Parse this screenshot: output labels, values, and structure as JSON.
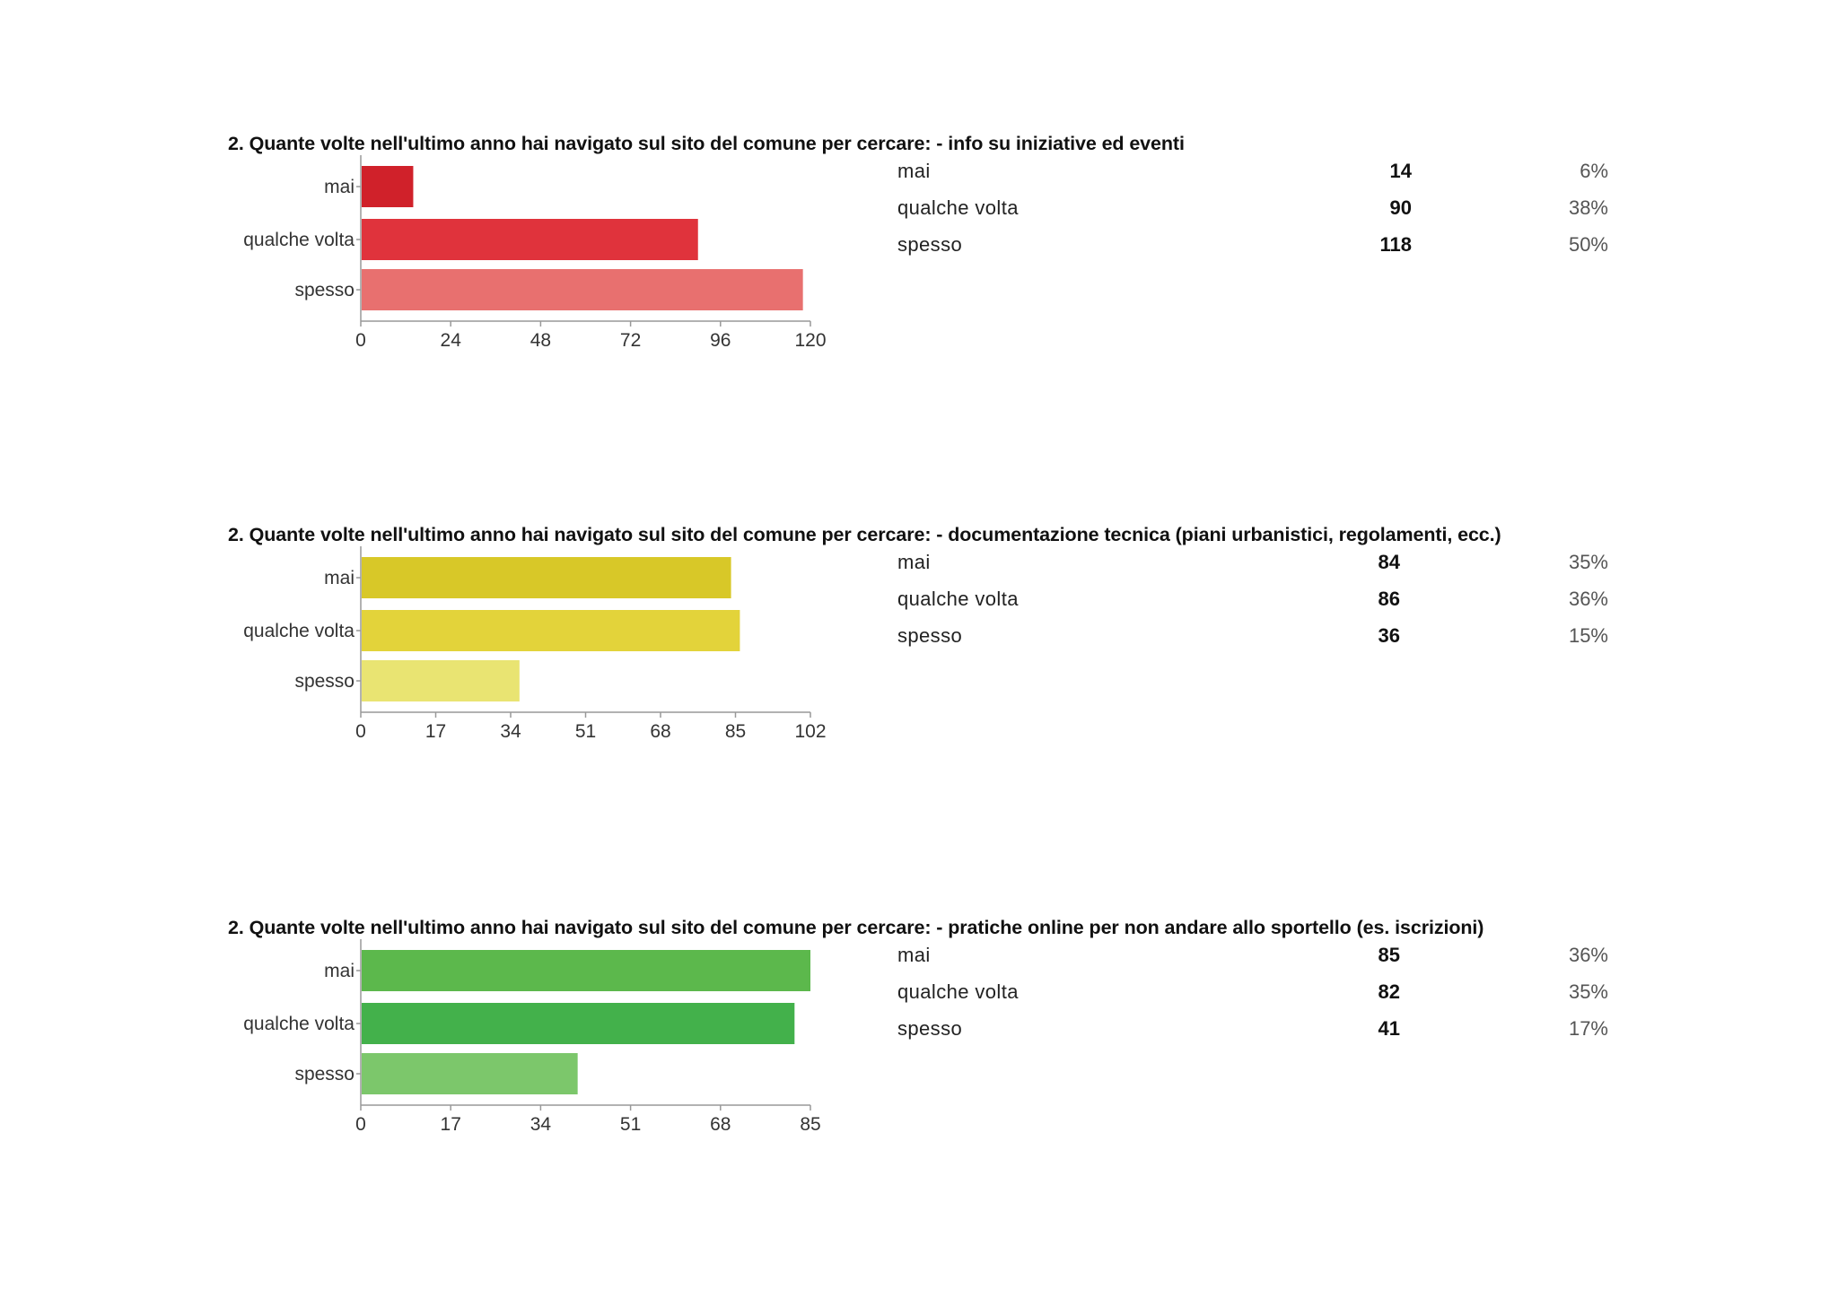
{
  "colors": {
    "q1": [
      "#d0212a",
      "#e0333c",
      "#e8706f"
    ],
    "q2": [
      "#d8c828",
      "#e3d33a",
      "#e9e472"
    ],
    "q3": [
      "#5cb84c",
      "#43b14b",
      "#7cc76b"
    ],
    "axis": "#999999"
  },
  "questions": [
    {
      "title": "2. Quante volte nell'ultimo anno hai navigato sul sito del comune per cercare: - info su iniziative ed eventi",
      "rows": [
        {
          "label": "mai",
          "count": "14",
          "pct": "6%"
        },
        {
          "label": "qualche volta",
          "count": "90",
          "pct": "38%"
        },
        {
          "label": "spesso",
          "count": "118",
          "pct": "50%"
        }
      ]
    },
    {
      "title": "2. Quante volte nell'ultimo anno hai navigato sul sito del comune per cercare: - documentazione tecnica (piani urbanistici, regolamenti, ecc.)",
      "rows": [
        {
          "label": "mai",
          "count": "84",
          "pct": "35%"
        },
        {
          "label": "qualche volta",
          "count": "86",
          "pct": "36%"
        },
        {
          "label": "spesso",
          "count": "36",
          "pct": "15%"
        }
      ]
    },
    {
      "title": "2. Quante volte nell'ultimo anno hai navigato sul sito del comune per cercare: - pratiche online per non andare allo sportello (es. iscrizioni)",
      "rows": [
        {
          "label": "mai",
          "count": "85",
          "pct": "36%"
        },
        {
          "label": "qualche volta",
          "count": "82",
          "pct": "35%"
        },
        {
          "label": "spesso",
          "count": "41",
          "pct": "17%"
        }
      ]
    }
  ],
  "chart_data": [
    {
      "type": "bar",
      "orientation": "horizontal",
      "categories": [
        "mai",
        "qualche volta",
        "spesso"
      ],
      "values": [
        14,
        90,
        118
      ],
      "xlim": [
        0,
        120
      ],
      "xticks": [
        "0",
        "24",
        "48",
        "72",
        "96",
        "120"
      ],
      "grid": false
    },
    {
      "type": "bar",
      "orientation": "horizontal",
      "categories": [
        "mai",
        "qualche volta",
        "spesso"
      ],
      "values": [
        84,
        86,
        36
      ],
      "xlim": [
        0,
        102
      ],
      "xticks": [
        "0",
        "17",
        "34",
        "51",
        "68",
        "85",
        "102"
      ],
      "grid": false
    },
    {
      "type": "bar",
      "orientation": "horizontal",
      "categories": [
        "mai",
        "qualche volta",
        "spesso"
      ],
      "values": [
        85,
        82,
        41
      ],
      "xlim": [
        0,
        85
      ],
      "xticks": [
        "0",
        "17",
        "34",
        "51",
        "68",
        "85"
      ],
      "grid": false
    }
  ]
}
